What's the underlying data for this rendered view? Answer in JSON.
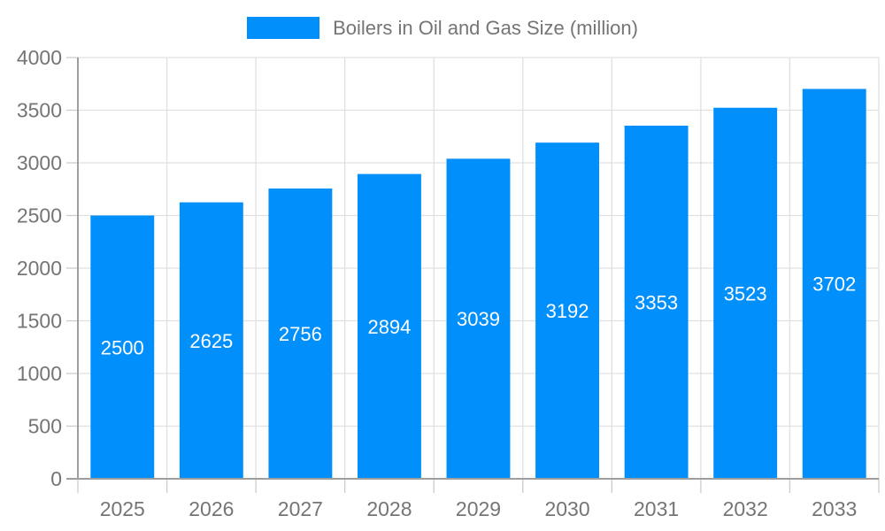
{
  "chart_data": {
    "type": "bar",
    "categories": [
      "2025",
      "2026",
      "2027",
      "2028",
      "2029",
      "2030",
      "2031",
      "2032",
      "2033"
    ],
    "series": [
      {
        "name": "Boilers in Oil and Gas Size (million)",
        "values": [
          2500,
          2625,
          2756,
          2894,
          3039,
          3192,
          3353,
          3523,
          3702
        ]
      }
    ],
    "ylim": [
      0,
      4000
    ],
    "ytick_step": 500,
    "grid": true,
    "legend_position": "top-center",
    "value_labels": "inside-center",
    "colors": {
      "bar": "#008FFB",
      "grid_line": "#e0e0e0",
      "axis_line": "#9e9e9e",
      "tick_line": "#cccccc",
      "axis_label": "#757575",
      "value_label": "#ffffff",
      "legend_text": "#757575",
      "background": "#ffffff"
    }
  }
}
